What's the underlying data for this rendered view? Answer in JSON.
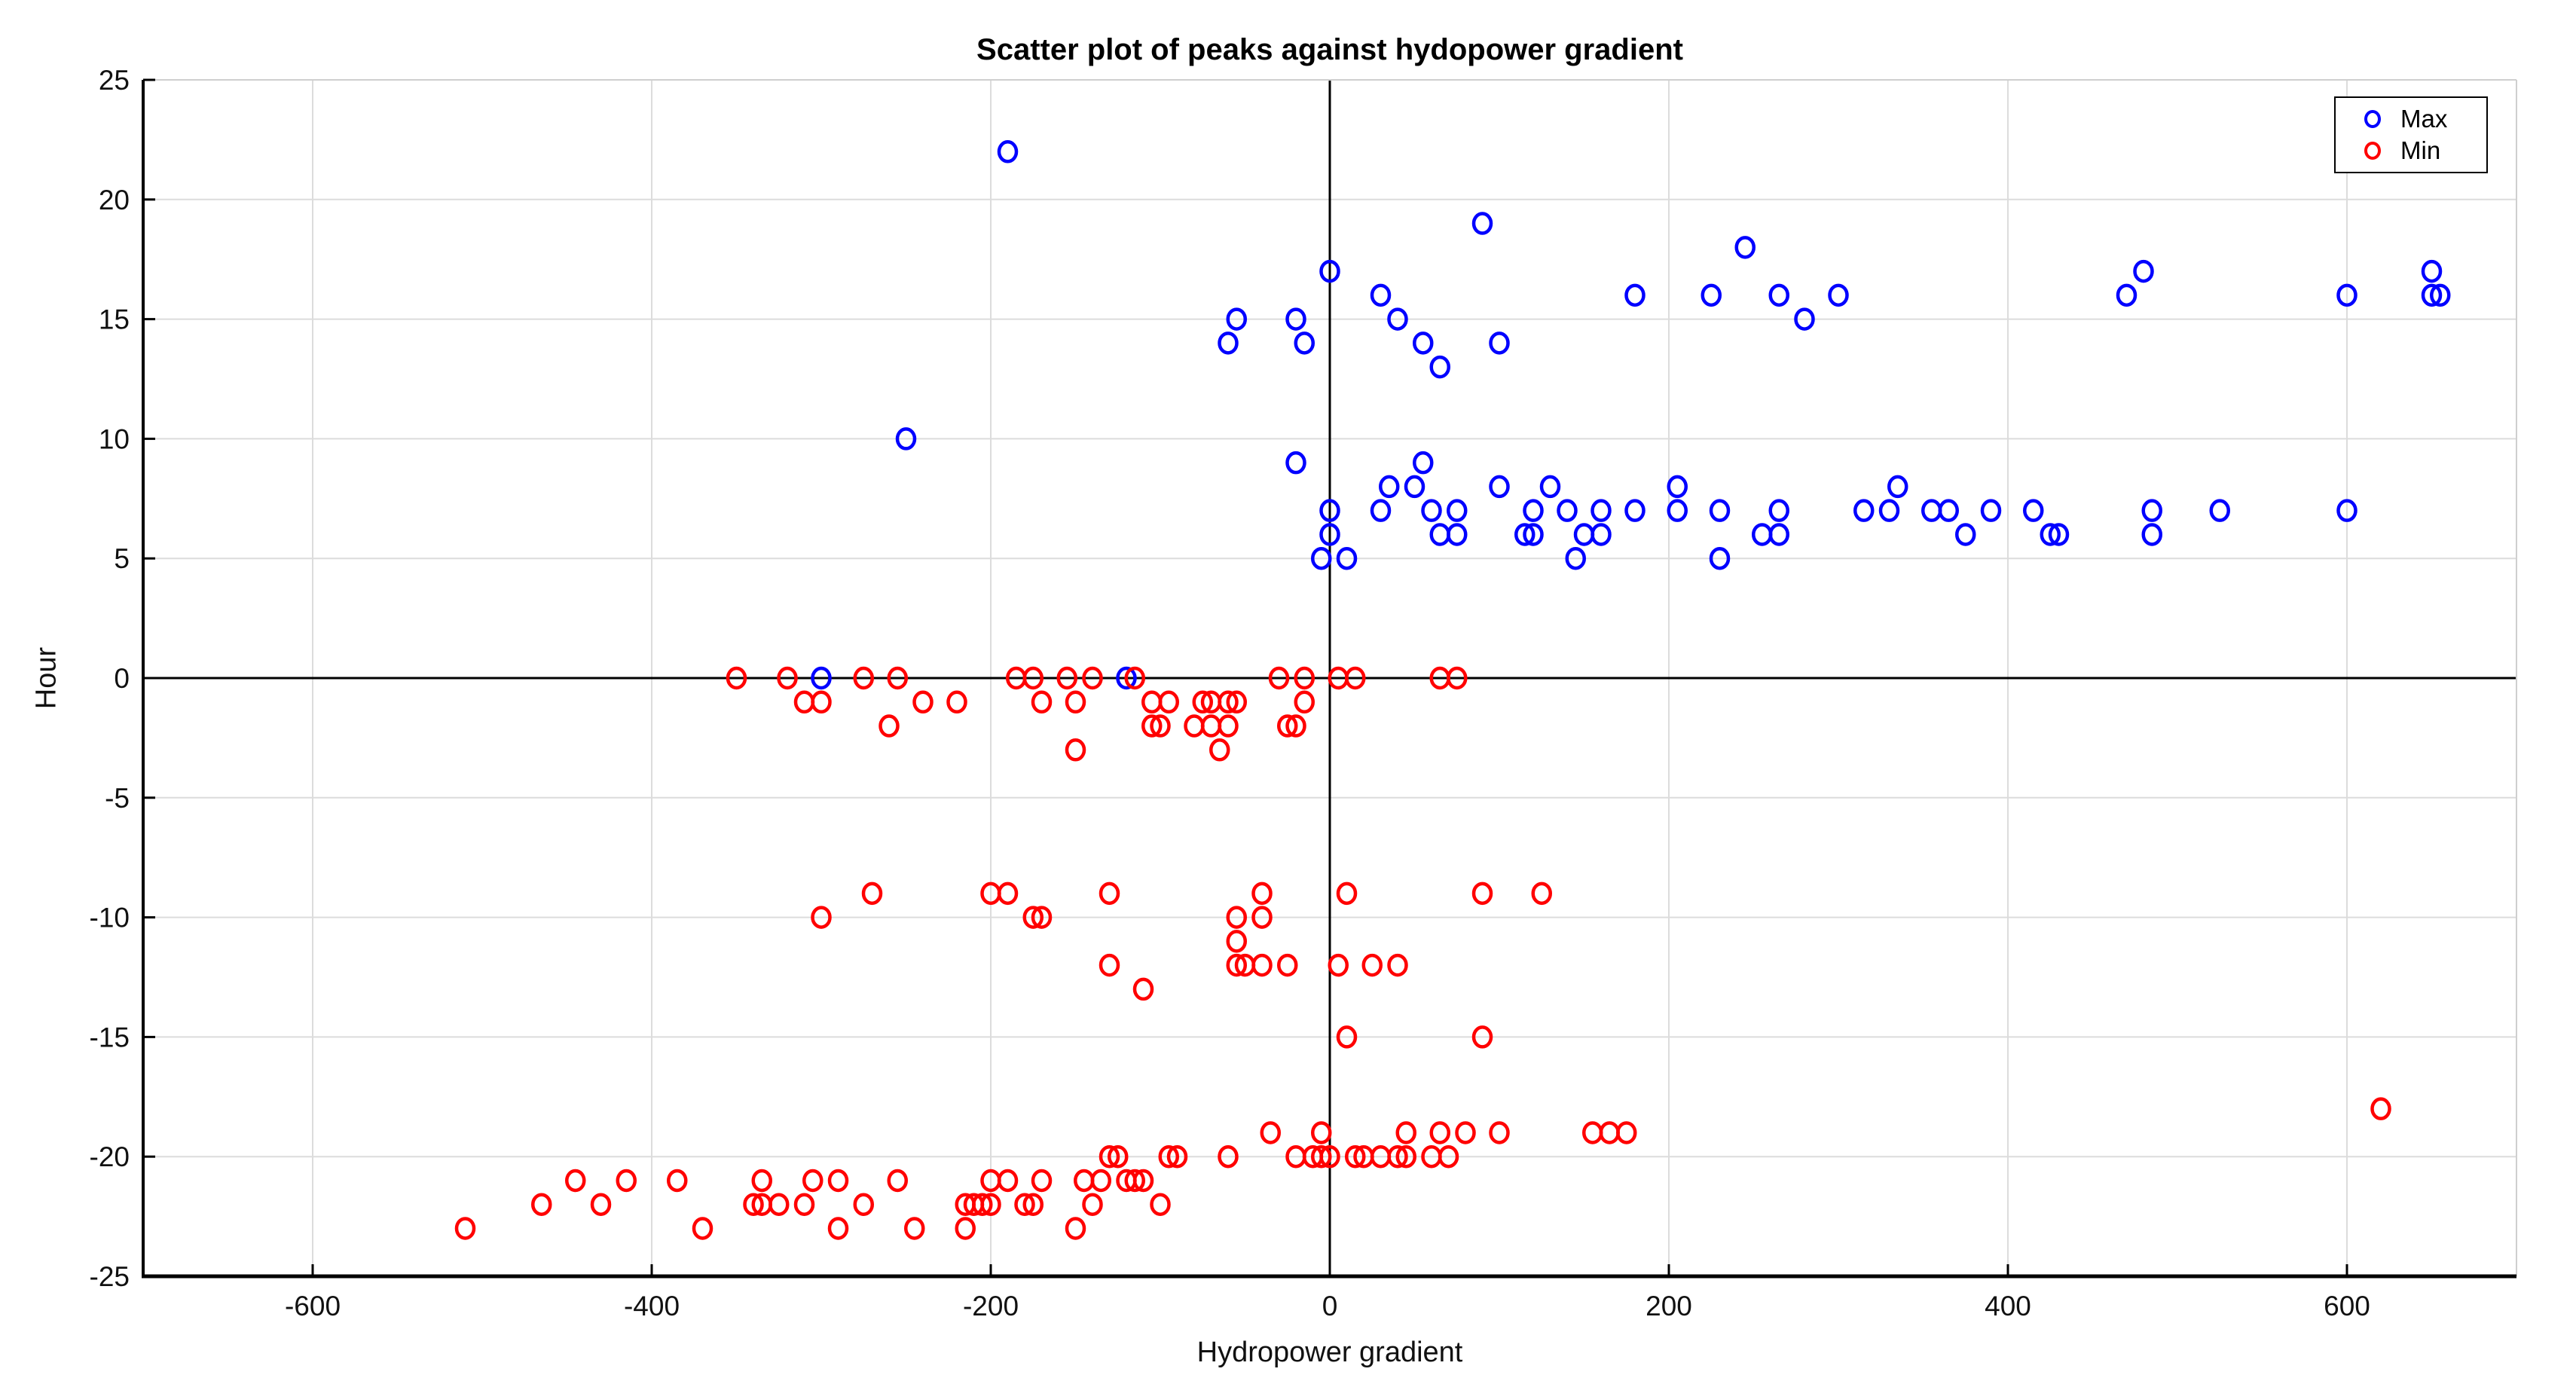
{
  "figure": {
    "background": "#ffffff"
  },
  "chart_data": {
    "type": "scatter",
    "title": "Scatter plot of peaks against hydopower gradient",
    "xlabel": "Hydropower gradient",
    "ylabel": "Hour",
    "xlim": [
      -700,
      700
    ],
    "ylim": [
      -25,
      25
    ],
    "xticks": [
      -600,
      -400,
      -200,
      0,
      200,
      400,
      600
    ],
    "yticks": [
      -25,
      -20,
      -15,
      -10,
      -5,
      0,
      5,
      10,
      15,
      20,
      25
    ],
    "grid": true,
    "origin_lines": true,
    "grid_color": "#dcdcdc",
    "axis_color": "#000000",
    "legend": {
      "position": "top-right",
      "entries": [
        {
          "label": "Max",
          "color": "#0000ff"
        },
        {
          "label": "Min",
          "color": "#ff0000"
        }
      ]
    },
    "series": [
      {
        "name": "Max",
        "color": "#0000ff",
        "marker": "circle",
        "points": [
          [
            -190,
            22
          ],
          [
            90,
            19
          ],
          [
            245,
            18
          ],
          [
            0,
            17
          ],
          [
            480,
            17
          ],
          [
            650,
            17
          ],
          [
            30,
            16
          ],
          [
            180,
            16
          ],
          [
            225,
            16
          ],
          [
            265,
            16
          ],
          [
            300,
            16
          ],
          [
            470,
            16
          ],
          [
            600,
            16
          ],
          [
            650,
            16
          ],
          [
            655,
            16
          ],
          [
            -55,
            15
          ],
          [
            -20,
            15
          ],
          [
            40,
            15
          ],
          [
            280,
            15
          ],
          [
            -60,
            14
          ],
          [
            -15,
            14
          ],
          [
            55,
            14
          ],
          [
            100,
            14
          ],
          [
            65,
            13
          ],
          [
            -250,
            10
          ],
          [
            -20,
            9
          ],
          [
            55,
            9
          ],
          [
            35,
            8
          ],
          [
            50,
            8
          ],
          [
            100,
            8
          ],
          [
            130,
            8
          ],
          [
            205,
            8
          ],
          [
            335,
            8
          ],
          [
            0,
            7
          ],
          [
            30,
            7
          ],
          [
            60,
            7
          ],
          [
            75,
            7
          ],
          [
            120,
            7
          ],
          [
            140,
            7
          ],
          [
            160,
            7
          ],
          [
            180,
            7
          ],
          [
            205,
            7
          ],
          [
            230,
            7
          ],
          [
            265,
            7
          ],
          [
            315,
            7
          ],
          [
            330,
            7
          ],
          [
            355,
            7
          ],
          [
            365,
            7
          ],
          [
            390,
            7
          ],
          [
            415,
            7
          ],
          [
            485,
            7
          ],
          [
            525,
            7
          ],
          [
            600,
            7
          ],
          [
            0,
            6
          ],
          [
            65,
            6
          ],
          [
            75,
            6
          ],
          [
            115,
            6
          ],
          [
            120,
            6
          ],
          [
            150,
            6
          ],
          [
            160,
            6
          ],
          [
            255,
            6
          ],
          [
            265,
            6
          ],
          [
            375,
            6
          ],
          [
            425,
            6
          ],
          [
            430,
            6
          ],
          [
            485,
            6
          ],
          [
            -5,
            5
          ],
          [
            10,
            5
          ],
          [
            145,
            5
          ],
          [
            230,
            5
          ],
          [
            -300,
            0
          ],
          [
            -120,
            0
          ]
        ]
      },
      {
        "name": "Min",
        "color": "#ff0000",
        "marker": "circle",
        "points": [
          [
            -350,
            0
          ],
          [
            -320,
            0
          ],
          [
            -275,
            0
          ],
          [
            -255,
            0
          ],
          [
            -185,
            0
          ],
          [
            -175,
            0
          ],
          [
            -155,
            0
          ],
          [
            -140,
            0
          ],
          [
            -115,
            0
          ],
          [
            -30,
            0
          ],
          [
            -15,
            0
          ],
          [
            5,
            0
          ],
          [
            15,
            0
          ],
          [
            65,
            0
          ],
          [
            75,
            0
          ],
          [
            -310,
            -1
          ],
          [
            -300,
            -1
          ],
          [
            -240,
            -1
          ],
          [
            -220,
            -1
          ],
          [
            -170,
            -1
          ],
          [
            -150,
            -1
          ],
          [
            -105,
            -1
          ],
          [
            -95,
            -1
          ],
          [
            -75,
            -1
          ],
          [
            -70,
            -1
          ],
          [
            -60,
            -1
          ],
          [
            -55,
            -1
          ],
          [
            -15,
            -1
          ],
          [
            -260,
            -2
          ],
          [
            -105,
            -2
          ],
          [
            -100,
            -2
          ],
          [
            -80,
            -2
          ],
          [
            -70,
            -2
          ],
          [
            -60,
            -2
          ],
          [
            -25,
            -2
          ],
          [
            -20,
            -2
          ],
          [
            -150,
            -3
          ],
          [
            -65,
            -3
          ],
          [
            -270,
            -9
          ],
          [
            -200,
            -9
          ],
          [
            -190,
            -9
          ],
          [
            -130,
            -9
          ],
          [
            -40,
            -9
          ],
          [
            10,
            -9
          ],
          [
            90,
            -9
          ],
          [
            125,
            -9
          ],
          [
            -300,
            -10
          ],
          [
            -175,
            -10
          ],
          [
            -170,
            -10
          ],
          [
            -55,
            -10
          ],
          [
            -40,
            -10
          ],
          [
            -55,
            -11
          ],
          [
            -130,
            -12
          ],
          [
            -55,
            -12
          ],
          [
            -50,
            -12
          ],
          [
            -40,
            -12
          ],
          [
            -25,
            -12
          ],
          [
            5,
            -12
          ],
          [
            25,
            -12
          ],
          [
            40,
            -12
          ],
          [
            -110,
            -13
          ],
          [
            10,
            -15
          ],
          [
            90,
            -15
          ],
          [
            620,
            -18
          ],
          [
            -35,
            -19
          ],
          [
            -5,
            -19
          ],
          [
            45,
            -19
          ],
          [
            65,
            -19
          ],
          [
            80,
            -19
          ],
          [
            100,
            -19
          ],
          [
            155,
            -19
          ],
          [
            165,
            -19
          ],
          [
            175,
            -19
          ],
          [
            -130,
            -20
          ],
          [
            -125,
            -20
          ],
          [
            -95,
            -20
          ],
          [
            -90,
            -20
          ],
          [
            -60,
            -20
          ],
          [
            -20,
            -20
          ],
          [
            -10,
            -20
          ],
          [
            -5,
            -20
          ],
          [
            0,
            -20
          ],
          [
            15,
            -20
          ],
          [
            20,
            -20
          ],
          [
            30,
            -20
          ],
          [
            40,
            -20
          ],
          [
            45,
            -20
          ],
          [
            60,
            -20
          ],
          [
            70,
            -20
          ],
          [
            -445,
            -21
          ],
          [
            -415,
            -21
          ],
          [
            -385,
            -21
          ],
          [
            -335,
            -21
          ],
          [
            -305,
            -21
          ],
          [
            -290,
            -21
          ],
          [
            -255,
            -21
          ],
          [
            -200,
            -21
          ],
          [
            -190,
            -21
          ],
          [
            -170,
            -21
          ],
          [
            -145,
            -21
          ],
          [
            -135,
            -21
          ],
          [
            -120,
            -21
          ],
          [
            -115,
            -21
          ],
          [
            -110,
            -21
          ],
          [
            -465,
            -22
          ],
          [
            -430,
            -22
          ],
          [
            -340,
            -22
          ],
          [
            -335,
            -22
          ],
          [
            -325,
            -22
          ],
          [
            -310,
            -22
          ],
          [
            -275,
            -22
          ],
          [
            -215,
            -22
          ],
          [
            -210,
            -22
          ],
          [
            -205,
            -22
          ],
          [
            -200,
            -22
          ],
          [
            -180,
            -22
          ],
          [
            -175,
            -22
          ],
          [
            -140,
            -22
          ],
          [
            -100,
            -22
          ],
          [
            -510,
            -23
          ],
          [
            -370,
            -23
          ],
          [
            -290,
            -23
          ],
          [
            -245,
            -23
          ],
          [
            -215,
            -23
          ],
          [
            -150,
            -23
          ]
        ]
      }
    ]
  }
}
